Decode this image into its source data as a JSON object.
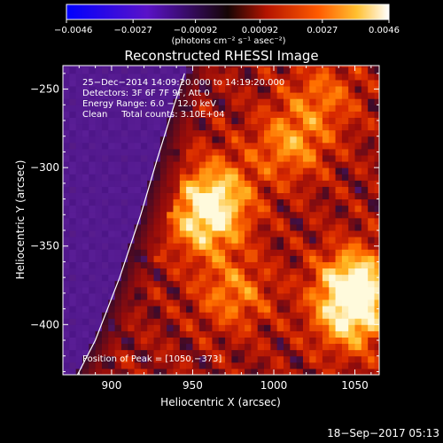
{
  "chart_data": {
    "type": "heatmap",
    "title": "Reconstructed RHESSI Image",
    "xlabel": "Heliocentric X (arcsec)",
    "ylabel": "Heliocentric Y (arcsec)",
    "xlim": [
      870,
      1065
    ],
    "ylim": [
      -432,
      -235
    ],
    "x_ticks": [
      900,
      950,
      1000,
      1050
    ],
    "y_ticks": [
      -250,
      -300,
      -350,
      -400
    ],
    "x_tick_labels": [
      "900",
      "950",
      "1000",
      "1050"
    ],
    "y_tick_labels": [
      "−250",
      "−300",
      "−350",
      "−400"
    ],
    "colorbar": {
      "range": [
        -0.0046,
        0.0046
      ],
      "ticks": [
        -0.0046,
        -0.0027,
        -0.00092,
        0.00092,
        0.0027,
        0.0046
      ],
      "tick_labels": [
        "−0.0046",
        "−0.0027",
        "−0.00092",
        "0.00092",
        "0.0027",
        "0.0046"
      ],
      "units_label": "(photons cm⁻² s⁻¹ asec⁻²)",
      "colormap": "blue-purple-red-yellow-white"
    },
    "info_lines": [
      "25−Dec−2014 14:09:20.000 to 14:19:20.000",
      "Detectors: 3F 6F 7F 9F, Att 0",
      "Energy Range: 6.0 − 12.0 keV",
      "Clean     Total counts: 3.10E+04"
    ],
    "peak_label": "Position of Peak = [1050,−373]",
    "peak_position": [
      1050,
      -373
    ],
    "limb_curve": [
      [
        879,
        -432
      ],
      [
        890,
        -410
      ],
      [
        905,
        -370
      ],
      [
        918,
        -330
      ],
      [
        928,
        -295
      ],
      [
        938,
        -262
      ],
      [
        945,
        -240
      ]
    ],
    "sources": [
      {
        "x": 1050,
        "y": -373,
        "strength": 1.0
      },
      {
        "x": 1048,
        "y": -395,
        "strength": 0.85
      },
      {
        "x": 958,
        "y": -335,
        "strength": 0.8
      },
      {
        "x": 965,
        "y": -315,
        "strength": 0.7
      },
      {
        "x": 1010,
        "y": -285,
        "strength": 0.6
      },
      {
        "x": 975,
        "y": -380,
        "strength": 0.55
      },
      {
        "x": 1030,
        "y": -255,
        "strength": 0.45
      }
    ],
    "colors": {
      "background": "#000000",
      "limb_line": "#ffffff"
    }
  },
  "footer": {
    "timestamp": "18−Sep−2017 05:13"
  }
}
